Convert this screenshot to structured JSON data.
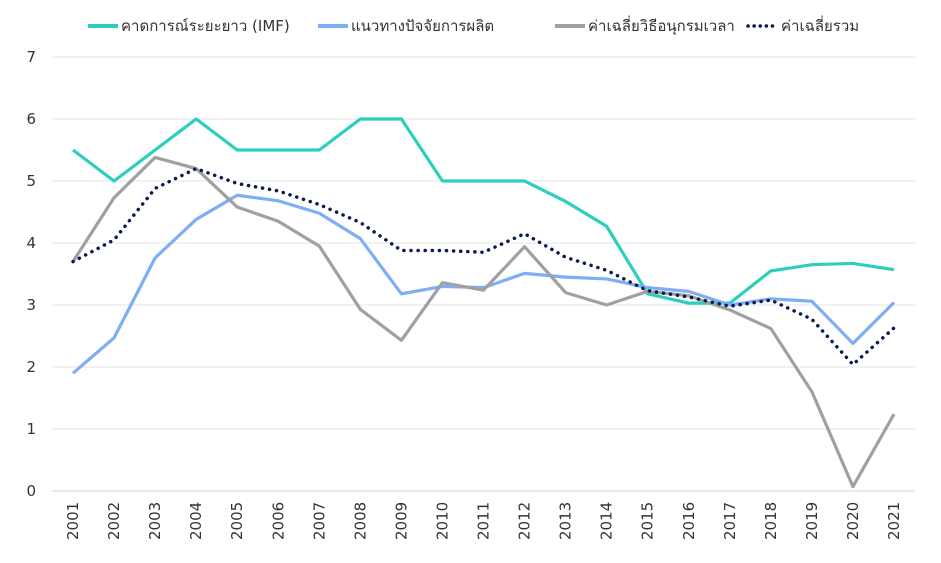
{
  "chart_data": {
    "type": "line",
    "title": "",
    "xlabel": "",
    "ylabel": "",
    "ylim": [
      0,
      7
    ],
    "yticks": [
      "0",
      "1",
      "2",
      "3",
      "4",
      "5",
      "6",
      "7"
    ],
    "grid": true,
    "legend_position": "top",
    "categories": [
      "2001",
      "2002",
      "2003",
      "2004",
      "2005",
      "2006",
      "2007",
      "2008",
      "2009",
      "2010",
      "2011",
      "2012",
      "2013",
      "2014",
      "2015",
      "2016",
      "2017",
      "2018",
      "2019",
      "2020",
      "2021"
    ],
    "series": [
      {
        "name": "คาดการณ์ระยะยาว (IMF)",
        "color": "#2ccfbd",
        "style": "solid",
        "values": [
          5.5,
          5.0,
          5.5,
          6.0,
          5.5,
          5.5,
          5.5,
          6.0,
          6.0,
          5.0,
          5.0,
          5.0,
          4.67,
          4.27,
          3.18,
          3.03,
          3.03,
          3.55,
          3.65,
          3.67,
          3.57
        ]
      },
      {
        "name": "แนวทางปัจจัยการผลิต",
        "color": "#7eaef5",
        "style": "solid",
        "values": [
          1.9,
          2.47,
          3.76,
          4.38,
          4.77,
          4.68,
          4.48,
          4.07,
          3.18,
          3.3,
          3.28,
          3.51,
          3.45,
          3.42,
          3.28,
          3.22,
          3.0,
          3.1,
          3.06,
          2.38,
          3.04
        ]
      },
      {
        "name": "ค่าเฉลี่ยวิธีอนุกรมเวลา",
        "color": "#a0a0a0",
        "style": "solid",
        "values": [
          3.7,
          4.73,
          5.38,
          5.2,
          4.58,
          4.35,
          3.95,
          2.93,
          2.43,
          3.36,
          3.24,
          3.94,
          3.2,
          3.0,
          3.22,
          3.15,
          2.92,
          2.62,
          1.6,
          0.07,
          1.24
        ]
      },
      {
        "name": "ค่าเฉลี่ยรวม",
        "color": "#0b1a4f",
        "style": "dotted",
        "values": [
          3.7,
          4.05,
          4.88,
          5.2,
          4.96,
          4.84,
          4.62,
          4.33,
          3.88,
          3.88,
          3.85,
          4.15,
          3.77,
          3.56,
          3.23,
          3.13,
          2.98,
          3.08,
          2.77,
          2.04,
          2.63
        ]
      }
    ]
  }
}
